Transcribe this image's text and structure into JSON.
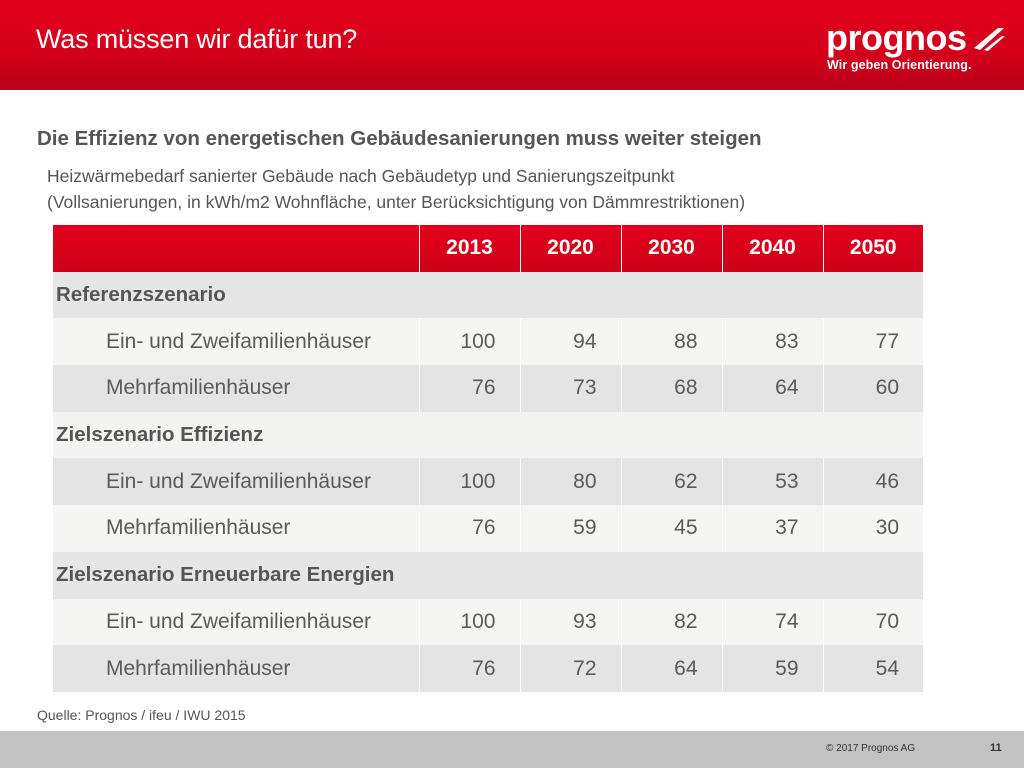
{
  "header": {
    "title": "Was müssen wir dafür tun?",
    "logo_word": "prognos",
    "logo_tagline": "Wir geben Orientierung.",
    "accent_color": "#e2001a"
  },
  "subtitle": "Die Effizienz von energetischen Gebäudesanierungen muss weiter steigen",
  "description": {
    "line1": "Heizwärmebedarf sanierter Gebäude nach Gebäudetyp und Sanierungszeitpunkt",
    "line2": "(Vollsanierungen, in kWh/m2 Wohnfläche, unter Berücksichtigung von Dämmrestriktionen)"
  },
  "table": {
    "years": [
      "2013",
      "2020",
      "2030",
      "2040",
      "2050"
    ],
    "sections": [
      {
        "name": "Referenzszenario",
        "rows": [
          {
            "label": "Ein- und Zweifamilienhäuser",
            "values": [
              "100",
              "94",
              "88",
              "83",
              "77"
            ]
          },
          {
            "label": "Mehrfamilienhäuser",
            "values": [
              "76",
              "73",
              "68",
              "64",
              "60"
            ]
          }
        ]
      },
      {
        "name": "Zielszenario Effizienz",
        "rows": [
          {
            "label": "Ein- und Zweifamilienhäuser",
            "values": [
              "100",
              "80",
              "62",
              "53",
              "46"
            ]
          },
          {
            "label": "Mehrfamilienhäuser",
            "values": [
              "76",
              "59",
              "45",
              "37",
              "30"
            ]
          }
        ]
      },
      {
        "name": "Zielszenario Erneuerbare Energien",
        "rows": [
          {
            "label": "Ein- und Zweifamilienhäuser",
            "values": [
              "100",
              "93",
              "82",
              "74",
              "70"
            ]
          },
          {
            "label": "Mehrfamilienhäuser",
            "values": [
              "76",
              "72",
              "64",
              "59",
              "54"
            ]
          }
        ]
      }
    ]
  },
  "source": "Quelle: Prognos / ifeu / IWU 2015",
  "footer": {
    "copyright": "© 2017 Prognos AG",
    "page": "11"
  }
}
